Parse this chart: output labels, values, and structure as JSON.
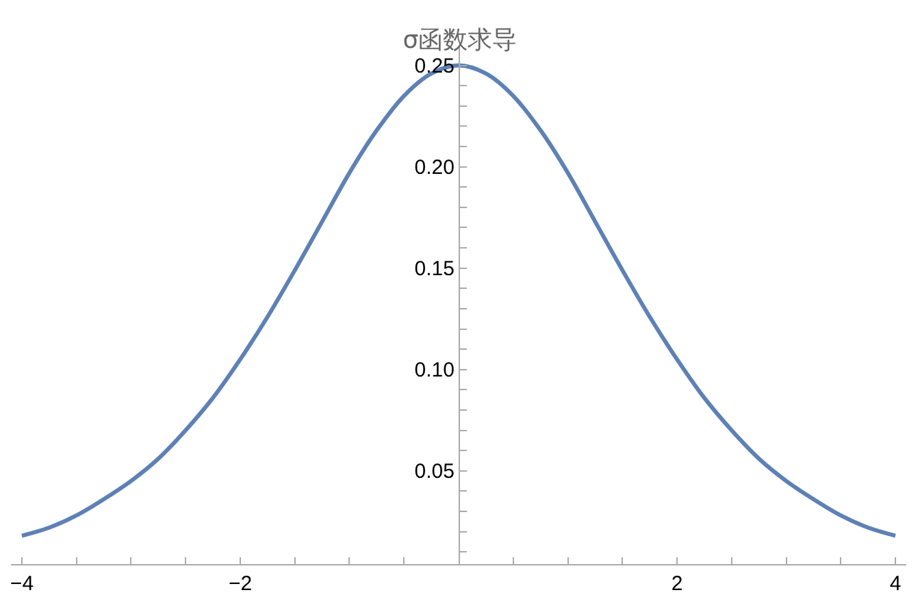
{
  "chart_data": {
    "type": "line",
    "title": "σ函数求导",
    "x": [
      -4,
      -3.75,
      -3.5,
      -3.25,
      -3,
      -2.75,
      -2.5,
      -2.25,
      -2,
      -1.75,
      -1.5,
      -1.25,
      -1,
      -0.75,
      -0.5,
      -0.25,
      0,
      0.25,
      0.5,
      0.75,
      1,
      1.25,
      1.5,
      1.75,
      2,
      2.25,
      2.5,
      2.75,
      3,
      3.25,
      3.5,
      3.75,
      4
    ],
    "series": [
      {
        "color": "#5e81b5",
        "values": [
          0.018,
          0.022,
          0.028,
          0.036,
          0.045,
          0.056,
          0.07,
          0.086,
          0.105,
          0.126,
          0.149,
          0.173,
          0.197,
          0.218,
          0.235,
          0.246,
          0.25,
          0.246,
          0.235,
          0.218,
          0.197,
          0.173,
          0.149,
          0.126,
          0.105,
          0.086,
          0.07,
          0.056,
          0.045,
          0.036,
          0.028,
          0.022,
          0.018
        ]
      }
    ],
    "xlim": [
      -4.1,
      4.1
    ],
    "ylim": [
      0.004,
      0.26
    ],
    "xticks": [
      {
        "value": -4,
        "label": "−4"
      },
      {
        "value": -3.5,
        "label": null
      },
      {
        "value": -3,
        "label": null
      },
      {
        "value": -2.5,
        "label": null
      },
      {
        "value": -2,
        "label": "−2"
      },
      {
        "value": -1.5,
        "label": null
      },
      {
        "value": -1,
        "label": null
      },
      {
        "value": -0.5,
        "label": null
      },
      {
        "value": 0.5,
        "label": null
      },
      {
        "value": 1,
        "label": null
      },
      {
        "value": 1.5,
        "label": null
      },
      2,
      {
        "value": 2.5,
        "label": null
      },
      {
        "value": 3,
        "label": null
      },
      {
        "value": 3.5,
        "label": null
      },
      4
    ],
    "yticks": [
      {
        "value": 0.01,
        "label": null
      },
      {
        "value": 0.02,
        "label": null
      },
      {
        "value": 0.03,
        "label": null
      },
      {
        "value": 0.04,
        "label": null
      },
      0.05,
      {
        "value": 0.06,
        "label": null
      },
      {
        "value": 0.07,
        "label": null
      },
      {
        "value": 0.08,
        "label": null
      },
      {
        "value": 0.09,
        "label": null
      },
      {
        "value": 0.1,
        "label": "0.10"
      },
      {
        "value": 0.11,
        "label": null
      },
      {
        "value": 0.12,
        "label": null
      },
      {
        "value": 0.13,
        "label": null
      },
      {
        "value": 0.14,
        "label": null
      },
      0.15,
      {
        "value": 0.16,
        "label": null
      },
      {
        "value": 0.17,
        "label": null
      },
      {
        "value": 0.18,
        "label": null
      },
      {
        "value": 0.19,
        "label": null
      },
      {
        "value": 0.2,
        "label": "0.20"
      },
      {
        "value": 0.21,
        "label": null
      },
      {
        "value": 0.22,
        "label": null
      },
      {
        "value": 0.23,
        "label": null
      },
      {
        "value": 0.24,
        "label": null
      },
      0.25
    ],
    "grid": false,
    "marker": "none",
    "line_style": "solid"
  }
}
